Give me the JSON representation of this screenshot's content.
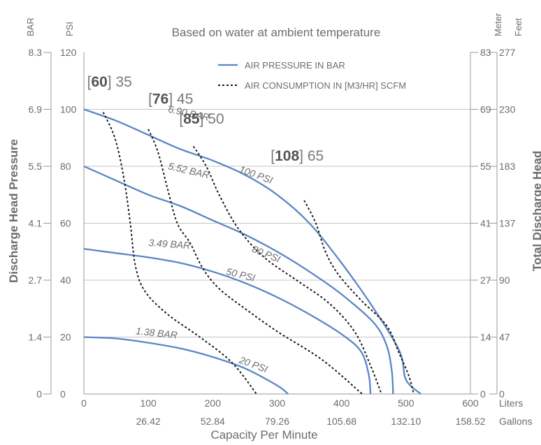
{
  "chart_data": {
    "type": "line",
    "title": "Based on water at ambient temperature",
    "xlabel": "Capacity Per Minute",
    "ylabel_left": "Discharge Head Pressure",
    "ylabel_right": "Total Discharge Head",
    "unit_labels": {
      "bar": "BAR",
      "psi": "PSI",
      "meter": "Meter",
      "feet": "Feet",
      "liters": "Liters",
      "gallons": "Gallons"
    },
    "x_ticks": [
      0,
      100,
      200,
      300,
      400,
      500,
      600
    ],
    "gallons_ticks": [
      "26.42",
      "52.84",
      "79.26",
      "105.68",
      "132.10",
      "158.52"
    ],
    "psi_ticks": [
      0,
      20,
      40,
      60,
      80,
      100,
      120
    ],
    "bar_ticks": [
      "0",
      "1.4",
      "2.7",
      "4.1",
      "5.5",
      "6.9",
      "8.3"
    ],
    "meter_ticks": [
      "0",
      "14",
      "27",
      "41",
      "55",
      "69",
      "83"
    ],
    "feet_ticks": [
      "0",
      "47",
      "90",
      "137",
      "183",
      "230",
      "277"
    ],
    "xlim": [
      0,
      600
    ],
    "ylim": [
      0,
      120
    ],
    "grid": true,
    "legend": [
      {
        "label": "AIR PRESSURE IN BAR",
        "style": "solid",
        "color": "#5b86c5"
      },
      {
        "label": "AIR CONSUMPTION IN [M3/HR] SCFM",
        "style": "dashed",
        "color": "#1a1a1a"
      }
    ],
    "series": [
      {
        "name": "100 PSI",
        "bar_label": "6.90 BAR",
        "style": "solid",
        "points": [
          [
            0,
            100
          ],
          [
            50,
            96
          ],
          [
            100,
            91
          ],
          [
            150,
            86
          ],
          [
            200,
            82
          ],
          [
            250,
            77
          ],
          [
            300,
            70
          ],
          [
            350,
            60
          ],
          [
            400,
            46
          ],
          [
            450,
            30
          ],
          [
            490,
            15
          ],
          [
            500,
            5
          ],
          [
            523,
            0
          ]
        ]
      },
      {
        "name": "80 PSI",
        "bar_label": "5.52 BAR",
        "style": "solid",
        "points": [
          [
            0,
            80
          ],
          [
            50,
            75
          ],
          [
            100,
            70
          ],
          [
            150,
            66
          ],
          [
            200,
            61
          ],
          [
            250,
            56
          ],
          [
            300,
            50
          ],
          [
            350,
            43
          ],
          [
            400,
            35
          ],
          [
            450,
            25
          ],
          [
            470,
            17
          ],
          [
            478,
            8
          ],
          [
            480,
            0
          ]
        ]
      },
      {
        "name": "50 PSI",
        "bar_label": "3.49 BAR",
        "style": "solid",
        "points": [
          [
            0,
            51
          ],
          [
            50,
            49.5
          ],
          [
            100,
            48
          ],
          [
            150,
            46
          ],
          [
            200,
            43
          ],
          [
            250,
            39
          ],
          [
            300,
            34
          ],
          [
            350,
            28
          ],
          [
            400,
            21
          ],
          [
            430,
            15
          ],
          [
            442,
            7
          ],
          [
            445,
            0
          ]
        ]
      },
      {
        "name": "20 PSI",
        "bar_label": "1.38 BAR",
        "style": "solid",
        "points": [
          [
            0,
            20
          ],
          [
            50,
            19.5
          ],
          [
            100,
            18
          ],
          [
            150,
            16
          ],
          [
            200,
            13
          ],
          [
            250,
            9
          ],
          [
            300,
            3
          ],
          [
            317,
            0
          ]
        ]
      },
      {
        "name": "35",
        "label_bracket": "60",
        "style": "dashed",
        "points": [
          [
            30,
            99
          ],
          [
            48,
            90
          ],
          [
            62,
            76
          ],
          [
            72,
            60
          ],
          [
            80,
            45
          ],
          [
            95,
            36
          ],
          [
            130,
            28
          ],
          [
            180,
            20
          ],
          [
            230,
            11
          ],
          [
            268,
            0
          ]
        ]
      },
      {
        "name": "45",
        "label_bracket": "76",
        "style": "dashed",
        "points": [
          [
            100,
            93
          ],
          [
            115,
            85
          ],
          [
            130,
            72
          ],
          [
            145,
            60
          ],
          [
            165,
            53
          ],
          [
            185,
            44
          ],
          [
            210,
            37
          ],
          [
            250,
            30
          ],
          [
            300,
            22
          ],
          [
            370,
            12
          ],
          [
            432,
            0
          ]
        ]
      },
      {
        "name": "50",
        "label_bracket": "85",
        "style": "dashed",
        "points": [
          [
            170,
            87
          ],
          [
            190,
            80
          ],
          [
            210,
            70
          ],
          [
            240,
            58
          ],
          [
            280,
            48
          ],
          [
            330,
            40
          ],
          [
            380,
            32
          ],
          [
            420,
            22
          ],
          [
            445,
            10
          ],
          [
            462,
            0
          ]
        ]
      },
      {
        "name": "65",
        "label_bracket": "108",
        "style": "dashed",
        "points": [
          [
            342,
            68
          ],
          [
            360,
            60
          ],
          [
            375,
            50
          ],
          [
            395,
            42
          ],
          [
            430,
            33
          ],
          [
            470,
            24
          ],
          [
            490,
            14
          ],
          [
            505,
            6
          ],
          [
            512,
            0
          ]
        ]
      }
    ],
    "annotations": [
      {
        "bracket": "60",
        "value": "35"
      },
      {
        "bracket": "76",
        "value": "45"
      },
      {
        "bracket": "85",
        "value": "50"
      },
      {
        "bracket": "108",
        "value": "65"
      }
    ]
  }
}
